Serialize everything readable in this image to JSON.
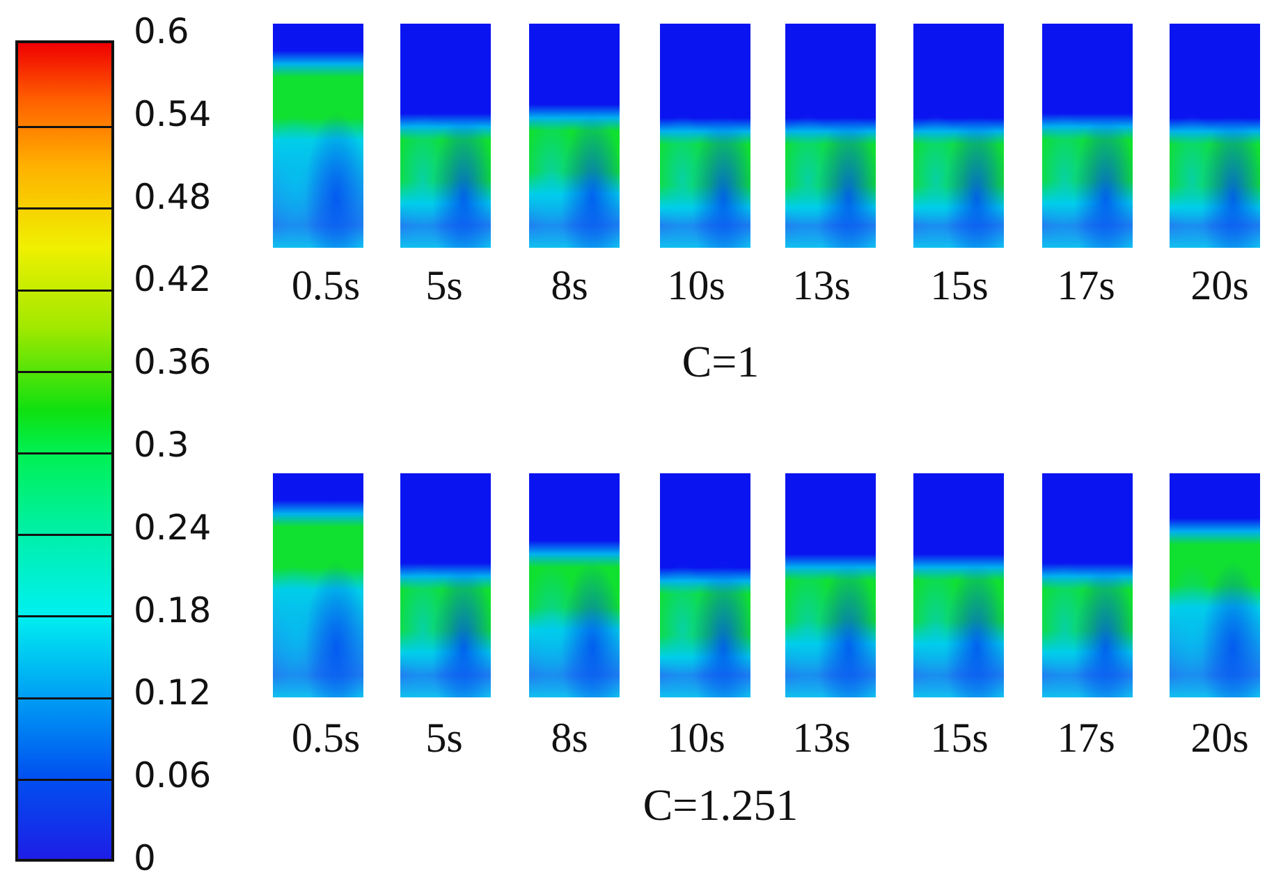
{
  "colorbar": {
    "ticks": [
      "0.6",
      "0.54",
      "0.48",
      "0.42",
      "0.36",
      "0.3",
      "0.24",
      "0.18",
      "0.12",
      "0.06",
      "0"
    ],
    "colors": [
      "#1e1ee6",
      "#00a0f4",
      "#00f0f0",
      "#00f050",
      "#f0f000",
      "#ff6000",
      "#f00000"
    ]
  },
  "rows": [
    {
      "label": "C=1",
      "times": [
        "0.5s",
        "5s",
        "8s",
        "10s",
        "13s",
        "15s",
        "17s",
        "20s"
      ]
    },
    {
      "label": "C=1.251",
      "times": [
        "0.5s",
        "5s",
        "8s",
        "10s",
        "13s",
        "15s",
        "17s",
        "20s"
      ]
    }
  ]
}
